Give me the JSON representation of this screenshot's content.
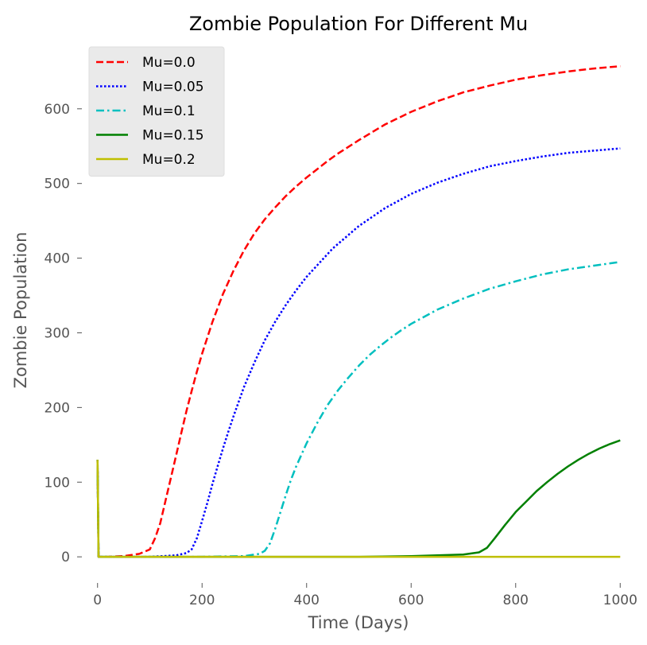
{
  "chart_data": {
    "type": "line",
    "title": "Zombie Population For Different Mu",
    "xlabel": "Time (Days)",
    "ylabel": "Zombie Population",
    "xlim": [
      -30,
      1030
    ],
    "ylim": [
      -35,
      685
    ],
    "xticks": [
      0,
      200,
      400,
      600,
      800,
      1000
    ],
    "yticks": [
      0,
      100,
      200,
      300,
      400,
      500,
      600
    ],
    "grid": false,
    "legend_position": "top-left",
    "series": [
      {
        "name": "Mu=0.0",
        "color": "#ff0000",
        "linestyle": "dashed",
        "x": [
          0,
          2,
          5,
          20,
          50,
          80,
          100,
          110,
          120,
          130,
          140,
          150,
          160,
          170,
          180,
          190,
          200,
          220,
          240,
          260,
          280,
          300,
          320,
          340,
          360,
          380,
          400,
          420,
          440,
          460,
          480,
          500,
          550,
          600,
          650,
          700,
          750,
          800,
          850,
          900,
          950,
          1000
        ],
        "y": [
          130,
          0,
          0,
          0,
          1,
          4,
          10,
          25,
          45,
          75,
          105,
          135,
          165,
          195,
          222,
          248,
          272,
          315,
          352,
          383,
          410,
          433,
          452,
          468,
          483,
          496,
          508,
          519,
          530,
          540,
          549,
          558,
          579,
          596,
          610,
          622,
          631,
          639,
          645,
          650,
          654,
          657
        ]
      },
      {
        "name": "Mu=0.05",
        "color": "#0000ff",
        "linestyle": "dotted",
        "x": [
          0,
          2,
          5,
          50,
          100,
          150,
          170,
          180,
          190,
          200,
          210,
          220,
          230,
          240,
          250,
          260,
          280,
          300,
          320,
          340,
          360,
          380,
          400,
          450,
          500,
          550,
          600,
          650,
          700,
          750,
          800,
          850,
          900,
          950,
          1000
        ],
        "y": [
          130,
          0,
          0,
          0,
          0,
          2,
          5,
          10,
          25,
          48,
          72,
          98,
          122,
          145,
          167,
          188,
          227,
          260,
          290,
          315,
          337,
          357,
          375,
          413,
          443,
          467,
          486,
          501,
          513,
          523,
          530,
          536,
          541,
          544,
          547
        ]
      },
      {
        "name": "Mu=0.1",
        "color": "#00bfbf",
        "linestyle": "dashdot",
        "x": [
          0,
          2,
          5,
          100,
          200,
          280,
          310,
          320,
          330,
          340,
          350,
          360,
          370,
          380,
          400,
          420,
          440,
          460,
          480,
          500,
          520,
          540,
          560,
          580,
          600,
          650,
          700,
          750,
          800,
          850,
          900,
          950,
          1000
        ],
        "y": [
          130,
          0,
          0,
          0,
          0,
          1,
          4,
          8,
          18,
          38,
          60,
          82,
          103,
          121,
          152,
          179,
          203,
          223,
          240,
          256,
          270,
          282,
          293,
          303,
          312,
          331,
          346,
          359,
          369,
          378,
          385,
          390,
          395
        ]
      },
      {
        "name": "Mu=0.15",
        "color": "#008000",
        "linestyle": "solid",
        "x": [
          0,
          2,
          5,
          100,
          300,
          500,
          600,
          700,
          730,
          745,
          760,
          780,
          800,
          820,
          840,
          860,
          880,
          900,
          920,
          940,
          960,
          980,
          1000
        ],
        "y": [
          130,
          0,
          0,
          0,
          0,
          0,
          1,
          3,
          6,
          12,
          25,
          43,
          60,
          74,
          88,
          100,
          111,
          121,
          130,
          138,
          145,
          151,
          156
        ]
      },
      {
        "name": "Mu=0.2",
        "color": "#bfbf00",
        "linestyle": "solid",
        "x": [
          0,
          2,
          5,
          500,
          1000
        ],
        "y": [
          130,
          0,
          0,
          0,
          0
        ]
      }
    ]
  }
}
